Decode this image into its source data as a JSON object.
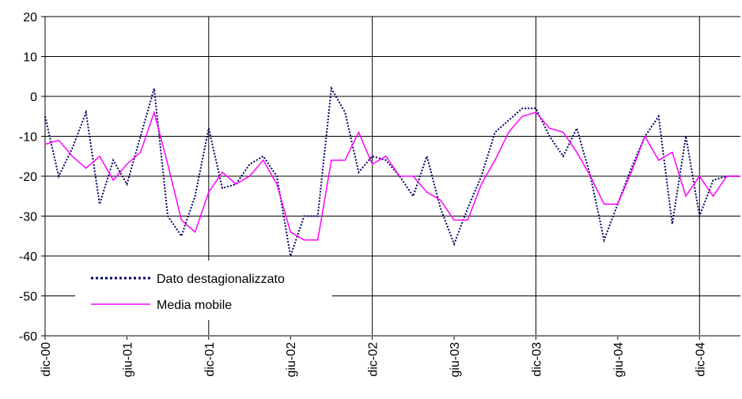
{
  "chart_data": {
    "type": "line",
    "categories": [
      "dic-00",
      null,
      null,
      null,
      null,
      null,
      "giu-01",
      null,
      null,
      null,
      null,
      null,
      "dic-01",
      null,
      null,
      null,
      null,
      null,
      "giu-02",
      null,
      null,
      null,
      null,
      null,
      "dic-02",
      null,
      null,
      null,
      null,
      null,
      "giu-03",
      null,
      null,
      null,
      null,
      null,
      "dic-03",
      null,
      null,
      null,
      null,
      null,
      "giu-04",
      null,
      null,
      null,
      null,
      null,
      "dic-04",
      null,
      null,
      null
    ],
    "series": [
      {
        "name": "Dato destagionalizzato",
        "color": "#000066",
        "dashed": true,
        "values": [
          -5,
          -20,
          -13,
          -4,
          -27,
          -16,
          -22,
          -10,
          2,
          -30,
          -35,
          -25,
          -8,
          -23,
          -22,
          -17,
          -15,
          -20,
          -40,
          -30,
          -30,
          2,
          -4,
          -19,
          -15,
          -16,
          -20,
          -25,
          -15,
          -28,
          -37,
          -28,
          -20,
          -9,
          -6,
          -3,
          -3,
          -10,
          -15,
          -8,
          -20,
          -36,
          -27,
          -18,
          -10,
          -5,
          -32,
          -10,
          -30,
          -21,
          -20,
          -20
        ]
      },
      {
        "name": "Media mobile",
        "color": "#ff00ff",
        "dashed": false,
        "values": [
          -12,
          -11,
          -15,
          -18,
          -15,
          -21,
          -17,
          -14,
          -4,
          -17,
          -31,
          -34,
          -24,
          -19,
          -22,
          -20,
          -16,
          -22,
          -34,
          -36,
          -36,
          -16,
          -16,
          -9,
          -17,
          -15,
          -20,
          -20,
          -24,
          -26,
          -31,
          -31,
          -22,
          -16,
          -9,
          -5,
          -4,
          -8,
          -9,
          -14,
          -20,
          -27,
          -27,
          -19,
          -10,
          -16,
          -14,
          -25,
          -20,
          -25,
          -20,
          -20
        ]
      }
    ],
    "ylim": [
      -60,
      20
    ],
    "yticks": [
      -60,
      -50,
      -40,
      -30,
      -20,
      -10,
      0,
      10,
      20
    ],
    "grid": true,
    "legend": "lower left"
  }
}
